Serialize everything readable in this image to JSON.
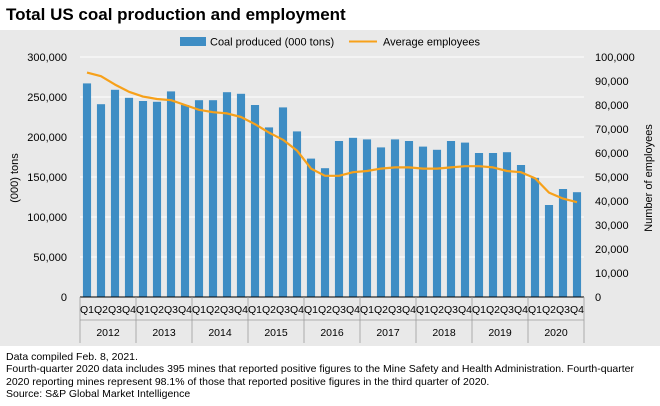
{
  "title": "Total US coal production and employment",
  "colors": {
    "bar": "#3e8dc4",
    "line": "#f7a11a",
    "background": "#e9e9e9",
    "grid": "#ffffff"
  },
  "chart_data": {
    "type": "bar",
    "title": "Total US coal production and employment",
    "categories": [
      "Q1",
      "Q2",
      "Q3",
      "Q4",
      "Q1",
      "Q2",
      "Q3",
      "Q4",
      "Q1",
      "Q2",
      "Q3",
      "Q4",
      "Q1",
      "Q2",
      "Q3",
      "Q4",
      "Q1",
      "Q2",
      "Q3",
      "Q4",
      "Q1",
      "Q2",
      "Q3",
      "Q4",
      "Q1",
      "Q2",
      "Q3",
      "Q4",
      "Q1",
      "Q2",
      "Q3",
      "Q4",
      "Q1",
      "Q2",
      "Q3",
      "Q4"
    ],
    "years": [
      "2012",
      "2013",
      "2014",
      "2015",
      "2016",
      "2017",
      "2018",
      "2019",
      "2020"
    ],
    "series": [
      {
        "name": "Coal produced (000 tons)",
        "kind": "bar",
        "axis": "left",
        "values": [
          267000,
          241000,
          259000,
          249000,
          245000,
          244000,
          257000,
          240000,
          246000,
          246000,
          256000,
          254000,
          240000,
          212000,
          237000,
          207000,
          173000,
          161000,
          195000,
          199000,
          197000,
          187000,
          197000,
          195000,
          188000,
          184000,
          195000,
          193000,
          180000,
          180000,
          181000,
          165000,
          149000,
          115000,
          135000,
          131000
        ]
      },
      {
        "name": "Average employees",
        "kind": "line",
        "axis": "right",
        "values": [
          93500,
          92000,
          88500,
          85500,
          83500,
          82500,
          82000,
          80000,
          78000,
          77000,
          76500,
          75000,
          72000,
          68500,
          65500,
          61000,
          53500,
          50500,
          50500,
          52000,
          52500,
          53500,
          54000,
          54000,
          53500,
          53500,
          54000,
          54500,
          54500,
          54000,
          52500,
          52000,
          49500,
          43500,
          41000,
          39500
        ]
      }
    ],
    "ylabel": "(000) tons",
    "y2label": "Number of employees",
    "ylim": [
      0,
      300000
    ],
    "y2lim": [
      0,
      100000
    ],
    "yticks": [
      "0",
      "50,000",
      "100,000",
      "150,000",
      "200,000",
      "250,000",
      "300,000"
    ],
    "y2ticks": [
      "0",
      "10,000",
      "20,000",
      "30,000",
      "40,000",
      "50,000",
      "60,000",
      "70,000",
      "80,000",
      "90,000",
      "100,000"
    ],
    "legend": "top-center",
    "grid": true
  },
  "footnotes": [
    "Data compiled Feb. 8, 2021.",
    "Fourth-quarter 2020 data includes 395 mines that reported positive figures to the Mine Safety and Health Administration. Fourth-quarter",
    "2020 reporting mines represent 98.1% of those that reported positive figures in the third quarter of 2020.",
    "Source: S&P Global Market Intelligence"
  ]
}
